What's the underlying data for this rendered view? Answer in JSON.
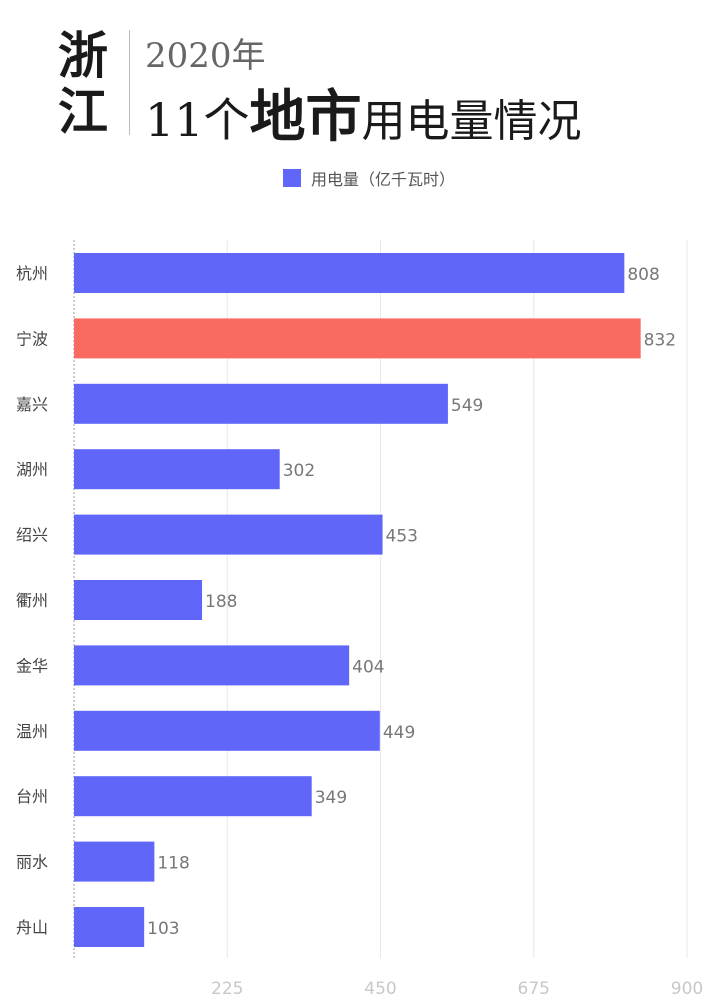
{
  "title": {
    "left": "浙江",
    "subtitle": "2020年",
    "main_a": "11个",
    "main_b": "地市",
    "main_c": "用电量情况"
  },
  "chart_data": {
    "type": "bar",
    "orientation": "horizontal",
    "categories": [
      "杭州",
      "宁波",
      "嘉兴",
      "湖州",
      "绍兴",
      "衢州",
      "金华",
      "温州",
      "台州",
      "丽水",
      "舟山"
    ],
    "series": [
      {
        "name": "用电量（亿千瓦时）",
        "values": [
          808,
          832,
          549,
          302,
          453,
          188,
          404,
          449,
          349,
          118,
          103
        ]
      }
    ],
    "highlight": "宁波",
    "xlim": [
      0,
      900
    ],
    "xticks": [
      225,
      450,
      675,
      900
    ],
    "grid": true,
    "legend": "top",
    "colors": {
      "bar": "#6066f8",
      "highlight": "#f96b60",
      "grid": "#e8e8e8",
      "tick": "#c8c8c8",
      "label": "#444444",
      "value": "#777777"
    }
  }
}
